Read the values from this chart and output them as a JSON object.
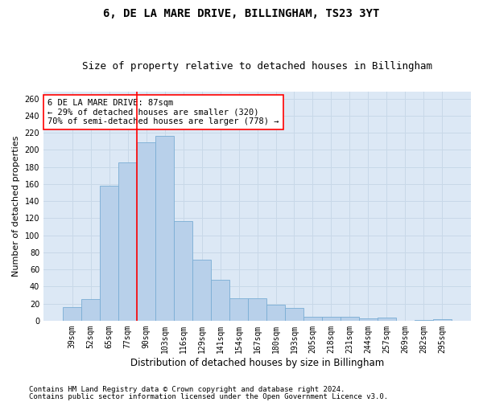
{
  "title": "6, DE LA MARE DRIVE, BILLINGHAM, TS23 3YT",
  "subtitle": "Size of property relative to detached houses in Billingham",
  "xlabel": "Distribution of detached houses by size in Billingham",
  "ylabel": "Number of detached properties",
  "categories": [
    "39sqm",
    "52sqm",
    "65sqm",
    "77sqm",
    "90sqm",
    "103sqm",
    "116sqm",
    "129sqm",
    "141sqm",
    "154sqm",
    "167sqm",
    "180sqm",
    "193sqm",
    "205sqm",
    "218sqm",
    "231sqm",
    "244sqm",
    "257sqm",
    "269sqm",
    "282sqm",
    "295sqm"
  ],
  "values": [
    16,
    25,
    158,
    185,
    209,
    216,
    117,
    71,
    48,
    26,
    26,
    19,
    15,
    5,
    5,
    5,
    3,
    4,
    0,
    1,
    2
  ],
  "bar_color": "#b8d0ea",
  "bar_edge_color": "#7aadd4",
  "vline_index": 3.5,
  "vline_color": "red",
  "annotation_text": "6 DE LA MARE DRIVE: 87sqm\n← 29% of detached houses are smaller (320)\n70% of semi-detached houses are larger (778) →",
  "annotation_box_color": "white",
  "annotation_box_edge_color": "red",
  "ylim": [
    0,
    268
  ],
  "yticks": [
    0,
    20,
    40,
    60,
    80,
    100,
    120,
    140,
    160,
    180,
    200,
    220,
    240,
    260
  ],
  "grid_color": "#c8d8e8",
  "background_color": "#dce8f5",
  "footer1": "Contains HM Land Registry data © Crown copyright and database right 2024.",
  "footer2": "Contains public sector information licensed under the Open Government Licence v3.0.",
  "title_fontsize": 10,
  "subtitle_fontsize": 9,
  "xlabel_fontsize": 8.5,
  "ylabel_fontsize": 8,
  "tick_fontsize": 7,
  "annotation_fontsize": 7.5,
  "footer_fontsize": 6.5
}
